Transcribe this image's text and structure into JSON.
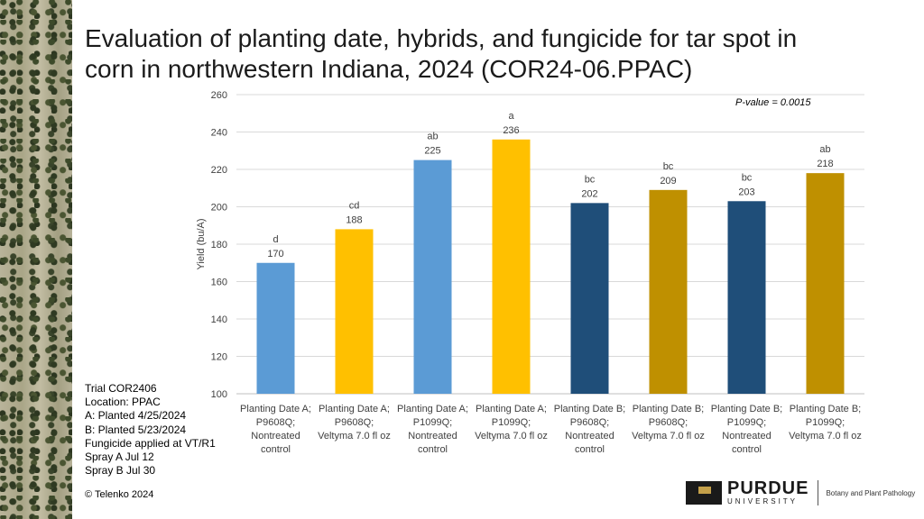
{
  "title_line1": "Evaluation of planting date, hybrids, and fungicide for tar spot in",
  "title_line2": "corn in northwestern Indiana, 2024 (COR24-06.PPAC)",
  "p_value_label": "P-value = ",
  "p_value": "0.0015",
  "trial_info": [
    "Trial COR2406",
    "Location: PPAC",
    "A: Planted 4/25/2024",
    "B: Planted 5/23/2024",
    "Fungicide applied at VT/R1",
    "Spray A Jul 12",
    "Spray B Jul 30"
  ],
  "copyright": "© Telenko 2024",
  "logo": {
    "name": "PURDUE",
    "sub": "UNIVERSITY",
    "dept": "Botany and Plant Pathology"
  },
  "chart_data": {
    "type": "bar",
    "ylabel": "Yield (bu/A)",
    "ylim": [
      100,
      260
    ],
    "yticks": [
      100,
      120,
      140,
      160,
      180,
      200,
      220,
      240,
      260
    ],
    "grid": true,
    "categories": [
      [
        "Planting Date A;",
        "P9608Q;",
        "Nontreated",
        "control"
      ],
      [
        "Planting Date A;",
        "P9608Q;",
        "Veltyma 7.0 fl oz"
      ],
      [
        "Planting Date A;",
        "P1099Q;",
        "Nontreated",
        "control"
      ],
      [
        "Planting Date A;",
        "P1099Q;",
        "Veltyma 7.0 fl oz"
      ],
      [
        "Planting Date B;",
        "P9608Q;",
        "Nontreated",
        "control"
      ],
      [
        "Planting Date B;",
        "P9608Q;",
        "Veltyma 7.0 fl oz"
      ],
      [
        "Planting Date B;",
        "P1099Q;",
        "Nontreated",
        "control"
      ],
      [
        "Planting Date B;",
        "P1099Q;",
        "Veltyma 7.0 fl oz"
      ]
    ],
    "values": [
      170,
      188,
      225,
      236,
      202,
      209,
      203,
      218
    ],
    "letters": [
      "d",
      "cd",
      "ab",
      "a",
      "bc",
      "bc",
      "bc",
      "ab"
    ],
    "colors": [
      "#5b9bd5",
      "#ffc000",
      "#5b9bd5",
      "#ffc000",
      "#1f4e79",
      "#bf9000",
      "#1f4e79",
      "#bf9000"
    ]
  }
}
